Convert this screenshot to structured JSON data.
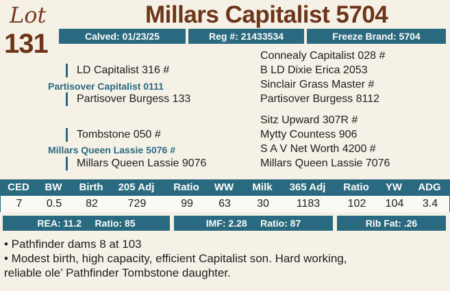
{
  "lot": {
    "word": "Lot",
    "number": "131"
  },
  "title": "Millars Capitalist 5704",
  "info": {
    "calved": "Calved: 01/23/25",
    "reg": "Reg #: 21433534",
    "freeze": "Freeze Brand: 5704"
  },
  "pedigree": {
    "sire_sire": "LD Capitalist 316 #",
    "sire": "Partisover Capitalist 0111",
    "sire_dam": "Partisover Burgess 133",
    "dam_sire": "Tombstone 050 #",
    "dam": "Millars Queen Lassie 5076 #",
    "dam_dam": "Millars Queen Lassie 9076",
    "right": [
      "Connealy Capitalist 028 #",
      "B LD Dixie Erica 2053",
      "Sinclair Grass Master #",
      "Partisover Burgess 8112",
      "Sitz Upward 307R #",
      "Mytty Countess 906",
      "S A V Net Worth 4200 #",
      "Millars Queen Lassie 7076"
    ]
  },
  "epd": {
    "headers": [
      "CED",
      "BW",
      "Birth",
      "205 Adj",
      "Ratio",
      "WW",
      "Milk",
      "365 Adj",
      "Ratio",
      "YW",
      "ADG"
    ],
    "values": [
      "7",
      "0.5",
      "82",
      "729",
      "99",
      "63",
      "30",
      "1183",
      "102",
      "104",
      "3.4"
    ]
  },
  "carcass": {
    "rea": "REA: 11.2",
    "rea_ratio": "Ratio: 85",
    "imf": "IMF: 2.28",
    "imf_ratio": "Ratio: 87",
    "rib": "Rib Fat: .26"
  },
  "notes": [
    "• Pathfinder dams 8 at 103",
    "• Modest birth, high capacity, efficient Capitalist son. Hard working,",
    "reliable ole’ Pathfinder Tombstone daughter."
  ],
  "colors": {
    "accent": "#2a6a80",
    "title": "#6d3419",
    "background": "#f5f1e6"
  }
}
